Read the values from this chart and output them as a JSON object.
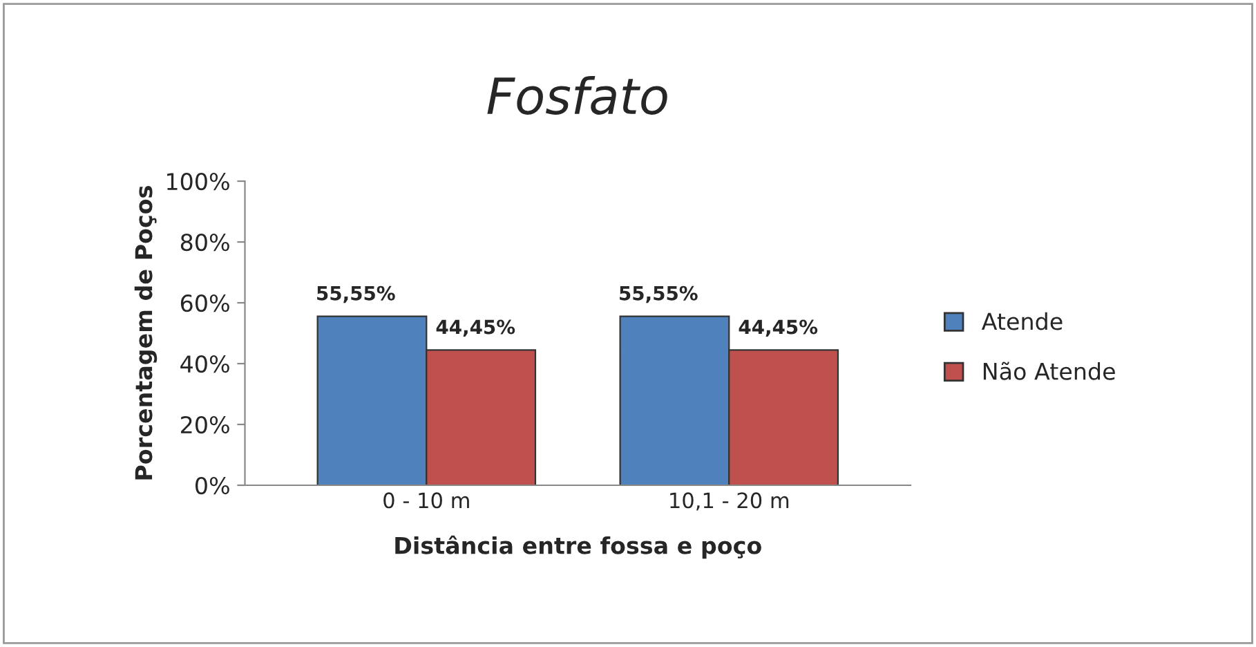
{
  "chart_data": {
    "type": "bar",
    "title": "Fosfato",
    "xlabel": "Distância entre fossa e poço",
    "ylabel": "Porcentagem de Poços",
    "categories": [
      "0 - 10 m",
      "10,1 - 20 m"
    ],
    "series": [
      {
        "name": "Atende",
        "color": "#4f81bd",
        "values": [
          55.55,
          55.55
        ],
        "value_labels": [
          "55,55%",
          "55,55%"
        ]
      },
      {
        "name": "Não Atende",
        "color": "#c0504d",
        "values": [
          44.45,
          44.45
        ],
        "value_labels": [
          "44,45%",
          "44,45%"
        ]
      }
    ],
    "ylim": [
      0,
      100
    ],
    "yticks": [
      {
        "value": 0,
        "label": "0%"
      },
      {
        "value": 20,
        "label": "20%"
      },
      {
        "value": 40,
        "label": "40%"
      },
      {
        "value": 60,
        "label": "60%"
      },
      {
        "value": 80,
        "label": "80%"
      },
      {
        "value": 100,
        "label": "100%"
      }
    ],
    "grid": false,
    "legend": "right"
  }
}
